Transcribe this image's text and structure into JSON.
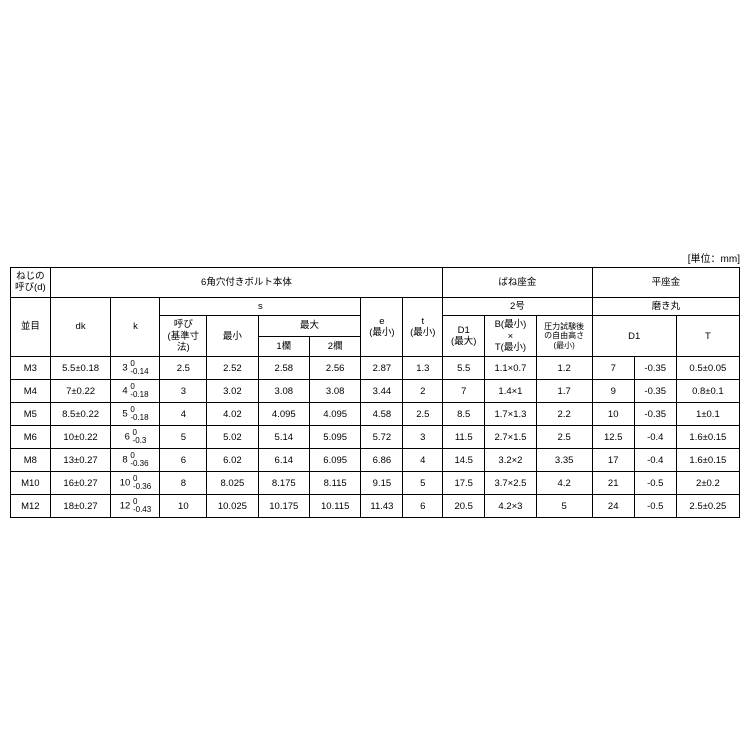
{
  "unit_label": "[単位：mm]",
  "headers": {
    "col_neji": "ねじの\n呼び(d)",
    "col_namime": "並目",
    "sec_bolt": "6角穴付きボルト本体",
    "sec_spring": "ばね座金",
    "sec_flat": "平座金",
    "dk": "dk",
    "k": "k",
    "s": "s",
    "yobi": "呼び\n(基準寸法)",
    "saisho": "最小",
    "saidai": "最大",
    "ran1": "1欄",
    "ran2": "2欄",
    "e": "e\n(最小)",
    "t": "t\n(最小)",
    "two_go": "2号",
    "d1_max": "D1\n(最大)",
    "b_t": "B(最小)\n×\nT(最小)",
    "atsu": "圧力試験後\nの自由高さ\n(最小)",
    "migaki": "磨き丸",
    "d1": "D1",
    "t_flat": "T"
  },
  "rows": [
    {
      "name": "M3",
      "dk": "5.5±0.18",
      "kbase": "3",
      "ktol_t": "0",
      "ktol_b": "-0.14",
      "yobi": "2.5",
      "saisho": "2.52",
      "r1": "2.58",
      "r2": "2.56",
      "e": "2.87",
      "t": "1.3",
      "d1max": "5.5",
      "bt": "1.1×0.7",
      "atsu": "1.2",
      "d1a": "7",
      "d1b": "-0.35",
      "tflat": "0.5±0.05"
    },
    {
      "name": "M4",
      "dk": "7±0.22",
      "kbase": "4",
      "ktol_t": "0",
      "ktol_b": "-0.18",
      "yobi": "3",
      "saisho": "3.02",
      "r1": "3.08",
      "r2": "3.08",
      "e": "3.44",
      "t": "2",
      "d1max": "7",
      "bt": "1.4×1",
      "atsu": "1.7",
      "d1a": "9",
      "d1b": "-0.35",
      "tflat": "0.8±0.1"
    },
    {
      "name": "M5",
      "dk": "8.5±0.22",
      "kbase": "5",
      "ktol_t": "0",
      "ktol_b": "-0.18",
      "yobi": "4",
      "saisho": "4.02",
      "r1": "4.095",
      "r2": "4.095",
      "e": "4.58",
      "t": "2.5",
      "d1max": "8.5",
      "bt": "1.7×1.3",
      "atsu": "2.2",
      "d1a": "10",
      "d1b": "-0.35",
      "tflat": "1±0.1"
    },
    {
      "name": "M6",
      "dk": "10±0.22",
      "kbase": "6",
      "ktol_t": "0",
      "ktol_b": "-0.3",
      "yobi": "5",
      "saisho": "5.02",
      "r1": "5.14",
      "r2": "5.095",
      "e": "5.72",
      "t": "3",
      "d1max": "11.5",
      "bt": "2.7×1.5",
      "atsu": "2.5",
      "d1a": "12.5",
      "d1b": "-0.4",
      "tflat": "1.6±0.15"
    },
    {
      "name": "M8",
      "dk": "13±0.27",
      "kbase": "8",
      "ktol_t": "0",
      "ktol_b": "-0.36",
      "yobi": "6",
      "saisho": "6.02",
      "r1": "6.14",
      "r2": "6.095",
      "e": "6.86",
      "t": "4",
      "d1max": "14.5",
      "bt": "3.2×2",
      "atsu": "3.35",
      "d1a": "17",
      "d1b": "-0.4",
      "tflat": "1.6±0.15"
    },
    {
      "name": "M10",
      "dk": "16±0.27",
      "kbase": "10",
      "ktol_t": "0",
      "ktol_b": "-0.36",
      "yobi": "8",
      "saisho": "8.025",
      "r1": "8.175",
      "r2": "8.115",
      "e": "9.15",
      "t": "5",
      "d1max": "17.5",
      "bt": "3.7×2.5",
      "atsu": "4.2",
      "d1a": "21",
      "d1b": "-0.5",
      "tflat": "2±0.2"
    },
    {
      "name": "M12",
      "dk": "18±0.27",
      "kbase": "12",
      "ktol_t": "0",
      "ktol_b": "-0.43",
      "yobi": "10",
      "saisho": "10.025",
      "r1": "10.175",
      "r2": "10.115",
      "e": "11.43",
      "t": "6",
      "d1max": "20.5",
      "bt": "4.2×3",
      "atsu": "5",
      "d1a": "24",
      "d1b": "-0.5",
      "tflat": "2.5±0.25"
    }
  ],
  "style": {
    "border_color": "#000000",
    "background_color": "#ffffff",
    "text_color": "#000000",
    "font_size_body": 9.5,
    "font_size_unit": 10
  }
}
